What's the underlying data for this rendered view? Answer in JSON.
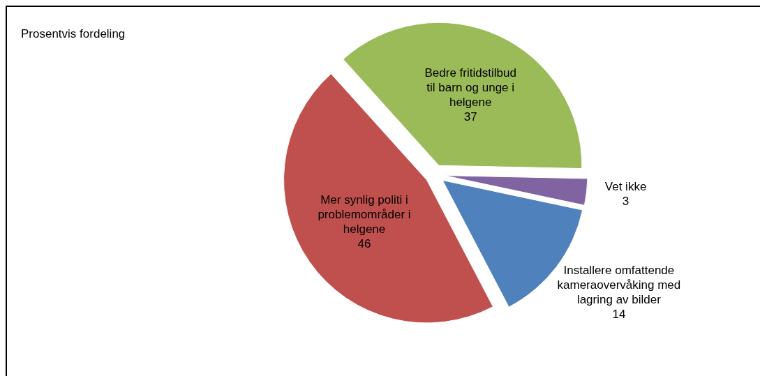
{
  "chart_data": {
    "type": "pie",
    "title": "Prosentvis fordeling",
    "categories": [
      "Bedre fritidstilbud til barn og unge i helgene",
      "Vet ikke",
      "Installere omfattende kameraovervåking med lagring av bilder",
      "Mer synlig politi i problemområder i helgene"
    ],
    "values": [
      37,
      3,
      14,
      46
    ],
    "colors": [
      "#9bbb59",
      "#8064a2",
      "#4f81bd",
      "#c0504d"
    ],
    "data_labels": true
  }
}
